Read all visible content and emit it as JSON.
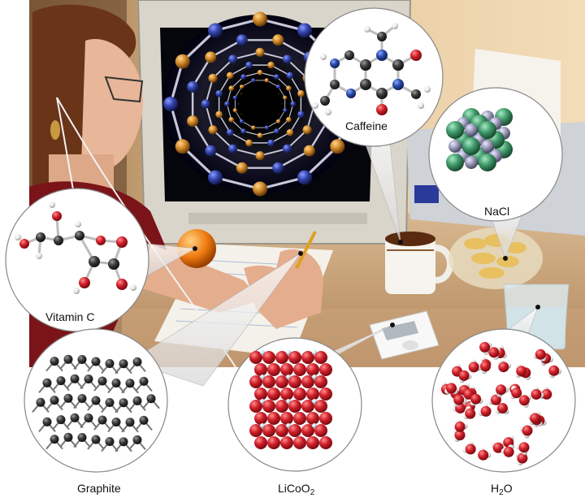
{
  "labels": {
    "caffeine": "Caffeine",
    "nacl": "NaCl",
    "vitamin_c": "Vitamin C",
    "graphite": "Graphite",
    "licoo2_main": "LiCoO",
    "licoo2_sub": "2",
    "h2o_h": "H",
    "h2o_sub": "2",
    "h2o_o": "O"
  },
  "colors": {
    "carbon": "#2b2b2b",
    "oxygen": "#d0202a",
    "nitrogen": "#2a4aa8",
    "hydrogen": "#f2f2f2",
    "sodium": "#3f9a6a",
    "chlorine": "#9a9ab8",
    "lithium": "#cfe8f0",
    "cobalt": "#c8202c",
    "nanotube_gold": "#d08a2a",
    "nanotube_blue": "#3344aa"
  }
}
